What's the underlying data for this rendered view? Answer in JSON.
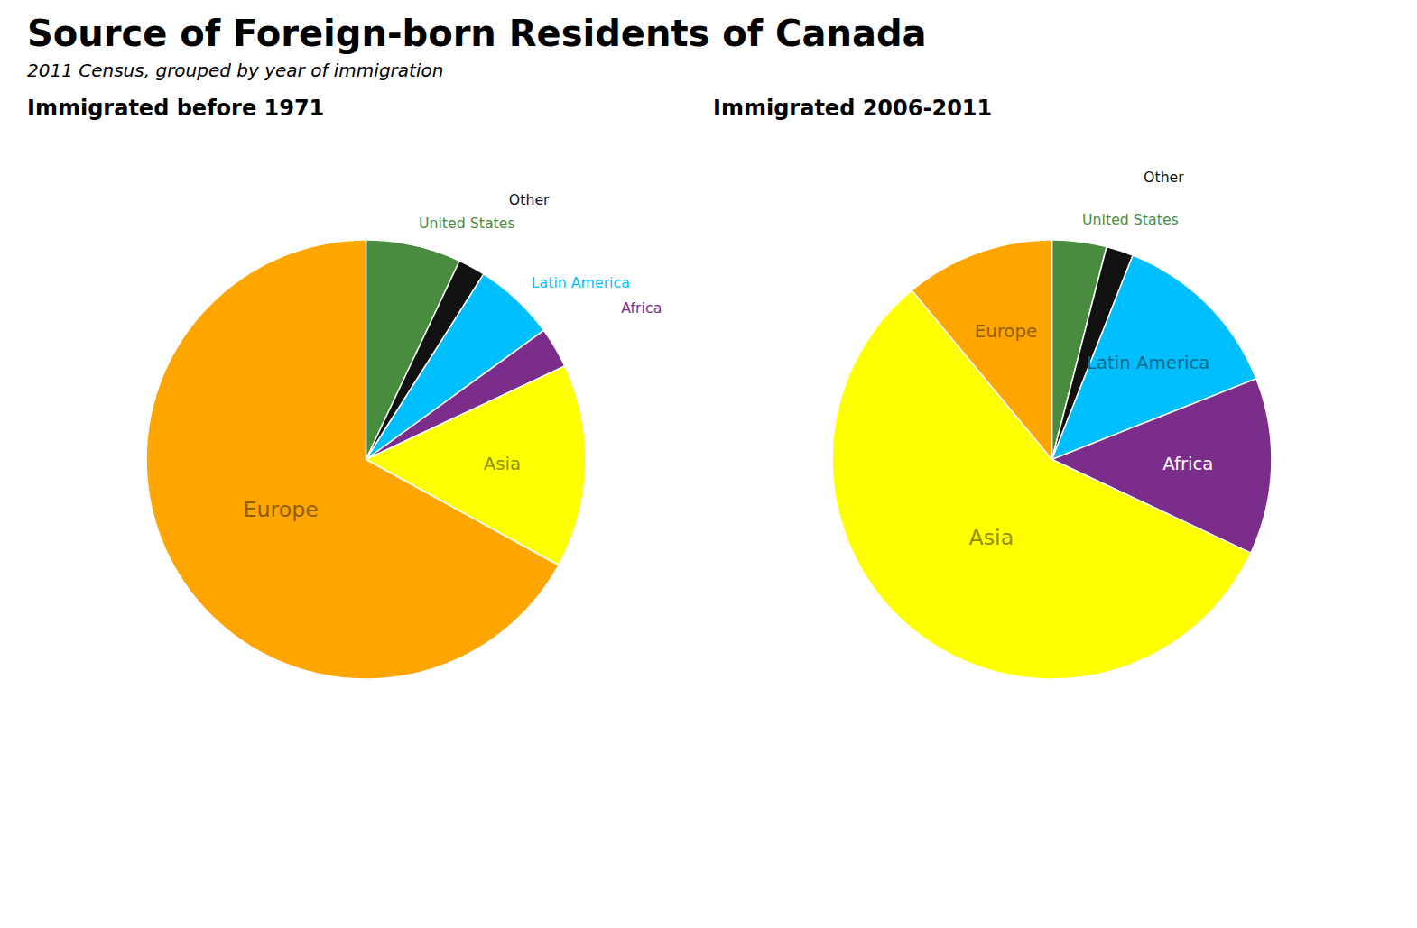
{
  "title": "Source of Foreign-born Residents of Canada",
  "subtitle": "2011 Census, grouped by year of immigration",
  "chart_data": [
    {
      "type": "pie",
      "title": "Immigrated before 1971",
      "categories": [
        "United States",
        "Other",
        "Latin America",
        "Africa",
        "Asia",
        "Europe"
      ],
      "values": [
        7.0,
        2.0,
        6.0,
        3.0,
        15.0,
        67.0
      ],
      "colors": [
        "#4A8C3F",
        "#111111",
        "#00BFFF",
        "#7B2D8B",
        "#FFFF00",
        "#FFA500"
      ]
    },
    {
      "type": "pie",
      "title": "Immigrated 2006-2011",
      "categories": [
        "United States",
        "Other",
        "Latin America",
        "Africa",
        "Asia",
        "Europe"
      ],
      "values": [
        4.0,
        2.0,
        13.0,
        13.0,
        57.0,
        11.0
      ],
      "colors": [
        "#4A8C3F",
        "#111111",
        "#00BFFF",
        "#7B2D8B",
        "#FFFF00",
        "#FFA500"
      ]
    }
  ]
}
